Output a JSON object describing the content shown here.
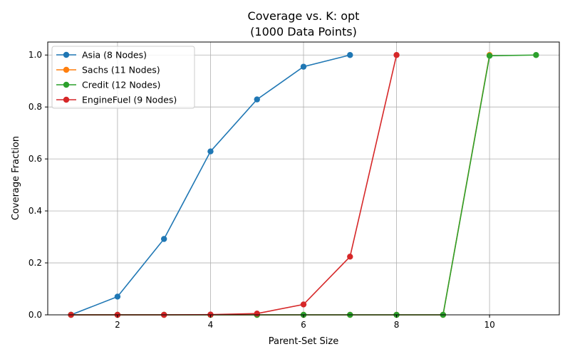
{
  "chart_data": {
    "type": "line",
    "title": "Coverage vs. K: opt",
    "subtitle": "(1000 Data Points)",
    "xlabel": "Parent-Set Size",
    "ylabel": "Coverage Fraction",
    "xlim": [
      0.5,
      11.5
    ],
    "ylim": [
      0,
      1.05
    ],
    "xticks": [
      2,
      4,
      6,
      8,
      10
    ],
    "yticks": [
      0.0,
      0.2,
      0.4,
      0.6,
      0.8,
      1.0
    ],
    "grid": true,
    "legend_position": "top-left",
    "series": [
      {
        "name": "Asia (8 Nodes)",
        "color": "#1f77b4",
        "x": [
          1,
          2,
          3,
          4,
          5,
          6,
          7
        ],
        "values": [
          0.0,
          0.07,
          0.292,
          0.629,
          0.829,
          0.955,
          1.0
        ]
      },
      {
        "name": "Sachs (11 Nodes)",
        "color": "#ff7f0e",
        "x": [
          1,
          2,
          3,
          4,
          5,
          6,
          7,
          8,
          9,
          10
        ],
        "values": [
          0.0,
          0.0,
          0.0,
          0.0,
          0.0,
          0.0,
          0.0,
          0.0,
          0.0,
          1.0
        ]
      },
      {
        "name": "Credit (12 Nodes)",
        "color": "#2ca02c",
        "x": [
          1,
          2,
          3,
          4,
          5,
          6,
          7,
          8,
          9,
          10,
          11
        ],
        "values": [
          0.0,
          0.0,
          0.0,
          0.0,
          0.0,
          0.0,
          0.0,
          0.0,
          0.0,
          0.997,
          1.0
        ]
      },
      {
        "name": "EngineFuel (9 Nodes)",
        "color": "#d62728",
        "x": [
          1,
          2,
          3,
          4,
          5,
          6,
          7,
          8
        ],
        "values": [
          0.0,
          0.0,
          0.0,
          0.001,
          0.005,
          0.04,
          0.224,
          1.0
        ]
      }
    ]
  }
}
